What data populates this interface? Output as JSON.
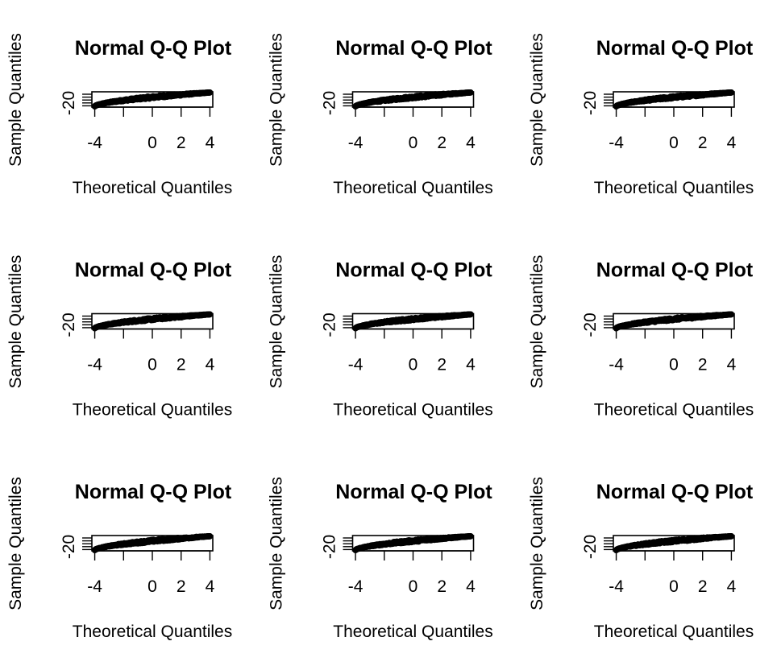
{
  "chart_data": [
    {
      "type": "scatter",
      "title": "Normal Q-Q Plot",
      "xlabel": "Theoretical Quantiles",
      "ylabel": "Sample Quantiles",
      "x_ticks": [
        -4,
        -2,
        0,
        2,
        4
      ],
      "x_tick_labels": [
        "-4",
        "",
        "0",
        "2",
        "4"
      ],
      "y_ticks": [
        -20,
        -15,
        -10,
        -5,
        0
      ],
      "y_tick_labels": [
        "-20",
        "",
        "",
        "",
        ""
      ],
      "xlim": [
        -4.2,
        4.2
      ],
      "ylim": [
        -21,
        1
      ],
      "reference_line": {
        "intercept": -10,
        "slope": 2.4
      },
      "points": {
        "x_range": [
          -4,
          4
        ],
        "y_range": [
          -20,
          0
        ],
        "note_n": "dense"
      }
    },
    {
      "type": "scatter",
      "title": "Normal Q-Q Plot",
      "xlabel": "Theoretical Quantiles",
      "ylabel": "Sample Quantiles",
      "x_ticks": [
        -4,
        -2,
        0,
        2,
        4
      ],
      "x_tick_labels": [
        "-4",
        "",
        "0",
        "2",
        "4"
      ],
      "y_ticks": [
        -20,
        -15,
        -10,
        -5,
        0
      ],
      "y_tick_labels": [
        "-20",
        "",
        "",
        "",
        ""
      ],
      "xlim": [
        -4.2,
        4.2
      ],
      "ylim": [
        -21,
        1
      ],
      "reference_line": {
        "intercept": -10,
        "slope": 2.4
      },
      "points": {
        "x_range": [
          -4,
          4
        ],
        "y_range": [
          -20,
          0
        ]
      }
    },
    {
      "type": "scatter",
      "title": "Normal Q-Q Plot",
      "xlabel": "Theoretical Quantiles",
      "ylabel": "Sample Quantiles",
      "x_ticks": [
        -4,
        -2,
        0,
        2,
        4
      ],
      "x_tick_labels": [
        "-4",
        "",
        "0",
        "2",
        "4"
      ],
      "y_ticks": [
        -20,
        -15,
        -10,
        -5,
        0
      ],
      "y_tick_labels": [
        "-20",
        "",
        "",
        "",
        ""
      ],
      "xlim": [
        -4.2,
        4.2
      ],
      "ylim": [
        -21,
        1
      ],
      "reference_line": {
        "intercept": -10,
        "slope": 2.4
      },
      "points": {
        "x_range": [
          -4,
          4
        ],
        "y_range": [
          -20,
          0
        ]
      }
    },
    {
      "type": "scatter",
      "title": "Normal Q-Q Plot",
      "xlabel": "Theoretical Quantiles",
      "ylabel": "Sample Quantiles",
      "x_ticks": [
        -4,
        -2,
        0,
        2,
        4
      ],
      "x_tick_labels": [
        "-4",
        "",
        "0",
        "2",
        "4"
      ],
      "y_ticks": [
        -20,
        -15,
        -10,
        -5,
        0
      ],
      "y_tick_labels": [
        "-20",
        "",
        "",
        "",
        ""
      ],
      "xlim": [
        -4.2,
        4.2
      ],
      "ylim": [
        -21,
        1
      ],
      "reference_line": {
        "intercept": -10,
        "slope": 2.4
      },
      "points": {
        "x_range": [
          -4,
          4
        ],
        "y_range": [
          -20,
          0
        ]
      }
    },
    {
      "type": "scatter",
      "title": "Normal Q-Q Plot",
      "xlabel": "Theoretical Quantiles",
      "ylabel": "Sample Quantiles",
      "x_ticks": [
        -4,
        -2,
        0,
        2,
        4
      ],
      "x_tick_labels": [
        "-4",
        "",
        "0",
        "2",
        "4"
      ],
      "y_ticks": [
        -20,
        -15,
        -10,
        -5,
        0
      ],
      "y_tick_labels": [
        "-20",
        "",
        "",
        "",
        ""
      ],
      "xlim": [
        -4.2,
        4.2
      ],
      "ylim": [
        -21,
        1
      ],
      "reference_line": {
        "intercept": -10,
        "slope": 2.4
      },
      "points": {
        "x_range": [
          -4,
          4
        ],
        "y_range": [
          -20,
          0
        ]
      }
    },
    {
      "type": "scatter",
      "title": "Normal Q-Q Plot",
      "xlabel": "Theoretical Quantiles",
      "ylabel": "Sample Quantiles",
      "x_ticks": [
        -4,
        -2,
        0,
        2,
        4
      ],
      "x_tick_labels": [
        "-4",
        "",
        "0",
        "2",
        "4"
      ],
      "y_ticks": [
        -20,
        -15,
        -10,
        -5,
        0
      ],
      "y_tick_labels": [
        "-20",
        "",
        "",
        "",
        ""
      ],
      "xlim": [
        -4.2,
        4.2
      ],
      "ylim": [
        -21,
        1
      ],
      "reference_line": {
        "intercept": -10,
        "slope": 2.4
      },
      "points": {
        "x_range": [
          -4,
          4
        ],
        "y_range": [
          -20,
          0
        ]
      }
    },
    {
      "type": "scatter",
      "title": "Normal Q-Q Plot",
      "xlabel": "Theoretical Quantiles",
      "ylabel": "Sample Quantiles",
      "x_ticks": [
        -4,
        -2,
        0,
        2,
        4
      ],
      "x_tick_labels": [
        "-4",
        "",
        "0",
        "2",
        "4"
      ],
      "y_ticks": [
        -20,
        -15,
        -10,
        -5,
        0
      ],
      "y_tick_labels": [
        "-20",
        "",
        "",
        "",
        ""
      ],
      "xlim": [
        -4.2,
        4.2
      ],
      "ylim": [
        -21,
        1
      ],
      "reference_line": {
        "intercept": -10,
        "slope": 2.4
      },
      "points": {
        "x_range": [
          -4,
          4
        ],
        "y_range": [
          -20,
          0
        ]
      }
    },
    {
      "type": "scatter",
      "title": "Normal Q-Q Plot",
      "xlabel": "Theoretical Quantiles",
      "ylabel": "Sample Quantiles",
      "x_ticks": [
        -4,
        -2,
        0,
        2,
        4
      ],
      "x_tick_labels": [
        "-4",
        "",
        "0",
        "2",
        "4"
      ],
      "y_ticks": [
        -20,
        -15,
        -10,
        -5,
        0
      ],
      "y_tick_labels": [
        "-20",
        "",
        "",
        "",
        ""
      ],
      "xlim": [
        -4.2,
        4.2
      ],
      "ylim": [
        -21,
        1
      ],
      "reference_line": {
        "intercept": -10,
        "slope": 2.4
      },
      "points": {
        "x_range": [
          -4,
          4
        ],
        "y_range": [
          -20,
          0
        ]
      }
    },
    {
      "type": "scatter",
      "title": "Normal Q-Q Plot",
      "xlabel": "Theoretical Quantiles",
      "ylabel": "Sample Quantiles",
      "x_ticks": [
        -4,
        -2,
        0,
        2,
        4
      ],
      "x_tick_labels": [
        "-4",
        "",
        "0",
        "2",
        "4"
      ],
      "y_ticks": [
        -20,
        -15,
        -10,
        -5,
        0
      ],
      "y_tick_labels": [
        "-20",
        "",
        "",
        "",
        ""
      ],
      "xlim": [
        -4.2,
        4.2
      ],
      "ylim": [
        -21,
        1
      ],
      "reference_line": {
        "intercept": -10,
        "slope": 2.4
      },
      "points": {
        "x_range": [
          -4,
          4
        ],
        "y_range": [
          -20,
          0
        ]
      }
    }
  ]
}
